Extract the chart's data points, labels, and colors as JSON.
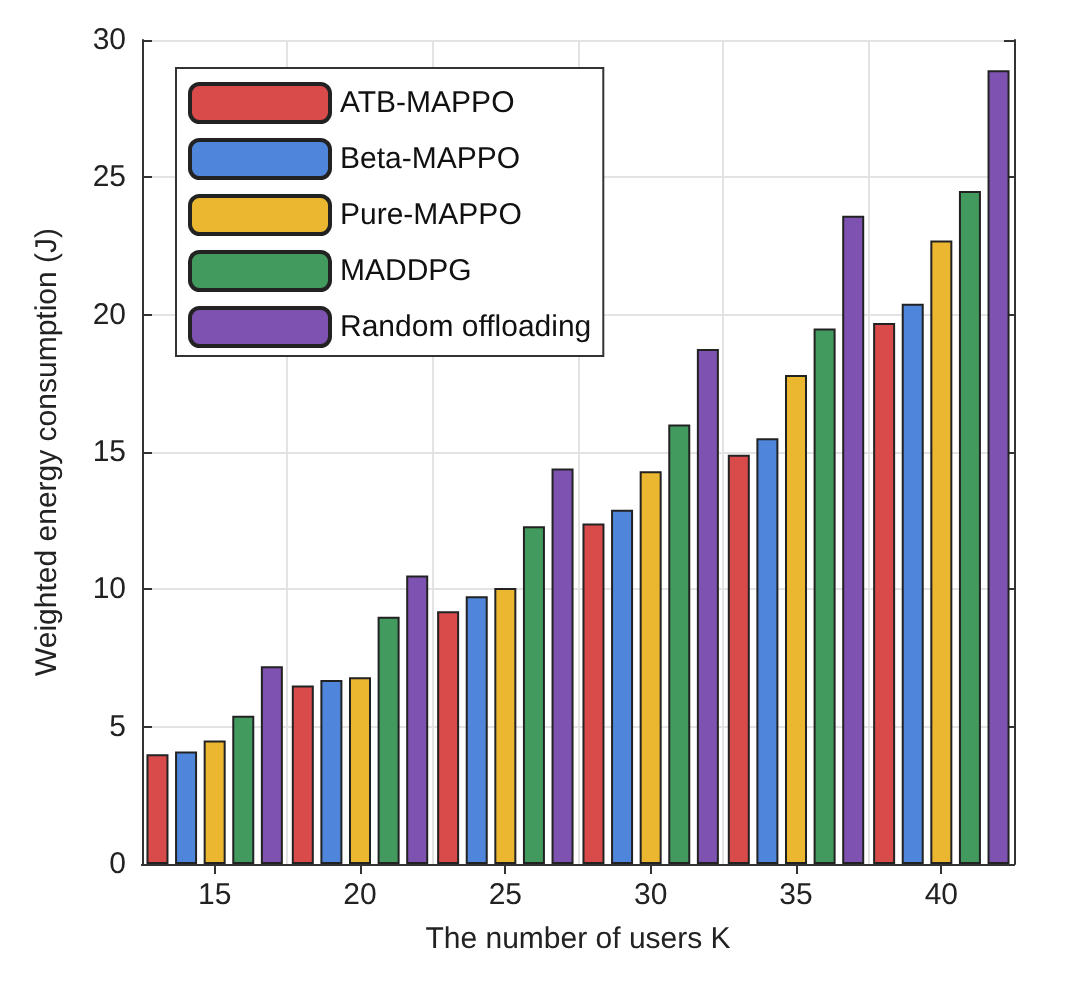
{
  "chart_data": {
    "type": "bar",
    "xlabel": "The number of users K",
    "ylabel": "Weighted energy consumption (J)",
    "categories": [
      "15",
      "20",
      "25",
      "30",
      "35",
      "40"
    ],
    "series": [
      {
        "name": "ATB-MAPPO",
        "color": "#d94a4a",
        "values": [
          4.0,
          6.5,
          9.2,
          12.4,
          14.9,
          19.7
        ]
      },
      {
        "name": "Beta-MAPPO",
        "color": "#4f86dc",
        "values": [
          4.1,
          6.7,
          9.75,
          12.9,
          15.5,
          20.4
        ]
      },
      {
        "name": "Pure-MAPPO",
        "color": "#ecb730",
        "values": [
          4.5,
          6.8,
          10.05,
          14.3,
          17.8,
          22.7
        ]
      },
      {
        "name": "MADDPG",
        "color": "#439a5e",
        "values": [
          5.4,
          9.0,
          12.3,
          16.0,
          19.5,
          24.5
        ]
      },
      {
        "name": "Random offloading",
        "color": "#7d52b0",
        "values": [
          7.2,
          10.5,
          14.4,
          18.75,
          23.6,
          28.9
        ]
      }
    ],
    "ylim": [
      0,
      30
    ],
    "yticks": [
      0,
      5,
      10,
      15,
      20,
      25,
      30
    ],
    "grid": true,
    "legend": "top left"
  }
}
